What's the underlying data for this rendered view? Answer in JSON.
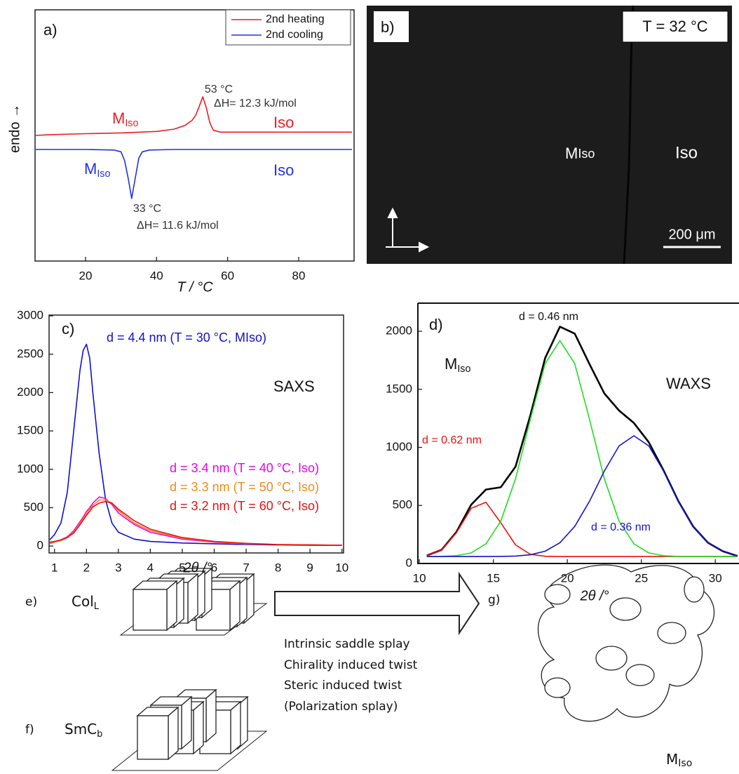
{
  "chart_data": [
    {
      "type": "line",
      "label": "a)",
      "xlabel": "T / °C",
      "ylabel": "endo →",
      "xlim": [
        5.8,
        95.6
      ],
      "ylim": [
        0,
        100
      ],
      "xticks": [
        20,
        40,
        60,
        80
      ],
      "yticks": [],
      "legend": "upper right",
      "series": [
        {
          "name": "2nd heating",
          "color": "#ee1c24",
          "x": [
            6,
            10,
            20,
            30,
            40,
            45,
            48,
            50,
            51,
            52,
            53,
            54,
            55,
            56,
            58,
            65,
            80,
            95
          ],
          "values": [
            50,
            50.3,
            50.7,
            51,
            51.6,
            52.5,
            54,
            56,
            58,
            61.5,
            65.4,
            61,
            55,
            52,
            51.3,
            51.3,
            51.3,
            51.3
          ]
        },
        {
          "name": "2nd cooling",
          "color": "#2233dd",
          "x": [
            6,
            10,
            20,
            28,
            30,
            31,
            32,
            33,
            34,
            35,
            36,
            38,
            45,
            60,
            80,
            95
          ],
          "values": [
            44.4,
            44.4,
            44.4,
            44.2,
            43.5,
            40,
            33,
            24.9,
            33,
            41,
            43.5,
            44.2,
            44.4,
            44.4,
            44.4,
            44.4
          ]
        }
      ],
      "annotations": [
        {
          "text": "53 °C",
          "color": "#333333"
        },
        {
          "text": "ΔH= 12.3 kJ/mol",
          "color": "#333333"
        },
        {
          "main": "M",
          "sub": "Iso",
          "color": "#ee1c24"
        },
        {
          "text": "Iso",
          "color": "#ee1c24"
        },
        {
          "main": "M",
          "sub": "Iso",
          "color": "#2233dd"
        },
        {
          "text": "Iso",
          "color": "#2233dd"
        },
        {
          "text": "33 °C",
          "color": "#333333"
        },
        {
          "text": "ΔH= 11.6 kJ/mol",
          "color": "#333333"
        }
      ]
    },
    {
      "type": "line",
      "label": "c)",
      "xlabel": "2θ /°",
      "xlim": [
        0.83,
        10.05
      ],
      "ylim": [
        -90,
        3010
      ],
      "xticks": [
        1,
        2,
        3,
        4,
        5,
        6,
        7,
        8,
        9,
        10
      ],
      "yticks": [
        0,
        500,
        1000,
        1500,
        2000,
        2500,
        3000
      ],
      "legend": "inline",
      "series": [
        {
          "name": "d = 4.4 nm (T = 30 °C, MIso)",
          "color": "#1010d0",
          "x": [
            0.85,
            1.0,
            1.2,
            1.4,
            1.6,
            1.8,
            1.9,
            2.0,
            2.1,
            2.2,
            2.4,
            2.6,
            2.8,
            3.0,
            3.5,
            4,
            5,
            6,
            7,
            8,
            9,
            10
          ],
          "values": [
            80,
            150,
            300,
            700,
            1500,
            2300,
            2550,
            2630,
            2450,
            2000,
            1200,
            600,
            300,
            180,
            90,
            60,
            40,
            30,
            20,
            15,
            10,
            10
          ]
        },
        {
          "name": "d = 3.4 nm (T = 40 °C, Iso)",
          "color": "#ee00ee",
          "x": [
            0.85,
            1.0,
            1.2,
            1.4,
            1.6,
            1.8,
            1.9,
            2.0,
            2.1,
            2.2,
            2.4,
            2.6,
            2.8,
            3.0,
            3.5,
            4,
            5,
            6,
            7,
            8,
            9,
            10
          ],
          "values": [
            40,
            60,
            80,
            120,
            200,
            320,
            380,
            450,
            500,
            560,
            640,
            620,
            540,
            430,
            280,
            180,
            90,
            50,
            30,
            20,
            15,
            10
          ]
        },
        {
          "name": "d = 3.3 nm (T = 50 °C, Iso)",
          "color": "#f08a1c",
          "x": [
            0.85,
            1.0,
            1.2,
            1.4,
            1.6,
            1.8,
            1.9,
            2.0,
            2.1,
            2.2,
            2.4,
            2.6,
            2.8,
            3.0,
            3.5,
            4,
            5,
            6,
            7,
            8,
            9,
            10
          ],
          "values": [
            30,
            50,
            70,
            110,
            180,
            300,
            360,
            420,
            480,
            530,
            600,
            600,
            560,
            460,
            300,
            200,
            100,
            55,
            30,
            20,
            15,
            10
          ]
        },
        {
          "name": "d = 3.2 nm (T = 60 °C, Iso)",
          "color": "#e81010",
          "x": [
            0.85,
            1.0,
            1.2,
            1.4,
            1.6,
            1.8,
            1.9,
            2.0,
            2.1,
            2.2,
            2.4,
            2.6,
            2.8,
            3.0,
            3.5,
            4,
            5,
            6,
            7,
            8,
            9,
            10
          ],
          "values": [
            50,
            60,
            80,
            110,
            170,
            280,
            340,
            400,
            450,
            510,
            560,
            580,
            560,
            480,
            330,
            220,
            110,
            60,
            35,
            20,
            15,
            10
          ]
        }
      ],
      "annotations": [
        {
          "text": "SAXS",
          "color": "#111111"
        }
      ]
    },
    {
      "type": "line",
      "label": "d)",
      "xlabel": "2θ /°",
      "xlim": [
        9.9,
        31.6
      ],
      "ylim": [
        0,
        2242
      ],
      "xticks": [
        10,
        15,
        20,
        25,
        30
      ],
      "yticks": [
        0,
        500,
        1000,
        1500,
        2000
      ],
      "series": [
        {
          "color": "#000000",
          "x": [
            10.5,
            11.5,
            12.5,
            13.5,
            14.5,
            15.5,
            16.5,
            17.5,
            18.5,
            19.5,
            20.5,
            21.5,
            22.5,
            23.5,
            24.5,
            25.5,
            26.5,
            27.5,
            28.5,
            29.5,
            30.5,
            31.5
          ],
          "values": [
            68,
            117,
            271,
            506,
            637,
            656,
            834,
            1275,
            1769,
            2039,
            1980,
            1717,
            1465,
            1317,
            1210,
            1044,
            802,
            537,
            319,
            179,
            106,
            64
          ]
        },
        {
          "color": "#ee1010",
          "x": [
            10.5,
            11.5,
            12.5,
            13.5,
            14.5,
            15.5,
            16.5,
            17.5,
            18.5,
            19.5,
            31.5
          ],
          "values": [
            68,
            116,
            264,
            475,
            527,
            351,
            160,
            79,
            62,
            60,
            60
          ]
        },
        {
          "color": "#22dd22",
          "x": [
            10.5,
            11.5,
            12.5,
            13.5,
            14.5,
            15.5,
            16.5,
            17.5,
            18.5,
            19.5,
            20.5,
            21.5,
            22.5,
            23.5,
            24.5,
            25.5,
            26.5,
            27.5,
            28.5,
            31.5
          ],
          "values": [
            60,
            61,
            67,
            91,
            170,
            364,
            730,
            1241,
            1721,
            1920,
            1721,
            1241,
            730,
            364,
            170,
            91,
            67,
            61,
            60,
            60
          ]
        },
        {
          "color": "#1515cc",
          "x": [
            10.5,
            14.5,
            15.5,
            16.5,
            17.5,
            18.5,
            19.5,
            20.5,
            21.5,
            22.5,
            23.5,
            24.5,
            25.5,
            26.5,
            27.5,
            28.5,
            29.5,
            30.5,
            31.5
          ],
          "values": [
            60,
            60,
            61,
            64,
            75,
            106,
            179,
            319,
            536,
            795,
            1013,
            1100,
            1013,
            795,
            536,
            319,
            179,
            106,
            64
          ]
        }
      ],
      "annotations": [
        {
          "text": "d = 0.46 nm",
          "color": "#111111"
        },
        {
          "main": "M",
          "sub": "Iso",
          "color": "#111111"
        },
        {
          "text": "WAXS",
          "color": "#111111"
        },
        {
          "text": "d = 0.62 nm",
          "color": "#ee1010"
        },
        {
          "text": "d = 0.36 nm",
          "color": "#1515cc"
        }
      ]
    }
  ],
  "micrograph": {
    "label": "b)",
    "temperature": "T = 32 °C",
    "left_phase": {
      "main": "M",
      "sub": "Iso"
    },
    "right_phase": "Iso",
    "scale_bar": "200 μm"
  },
  "schematic": {
    "e": {
      "label": "e)",
      "phase": {
        "main": "Col",
        "sub": "L"
      }
    },
    "f": {
      "label": "f)",
      "phase": {
        "main": "SmC",
        "sub": "b"
      }
    },
    "g": {
      "label": "g)",
      "phase": {
        "main": "M",
        "sub": "Iso"
      }
    },
    "mechanisms": [
      "Intrinsic saddle splay",
      "Chirality induced twist",
      "Steric induced twist",
      "(Polarization splay)"
    ]
  }
}
